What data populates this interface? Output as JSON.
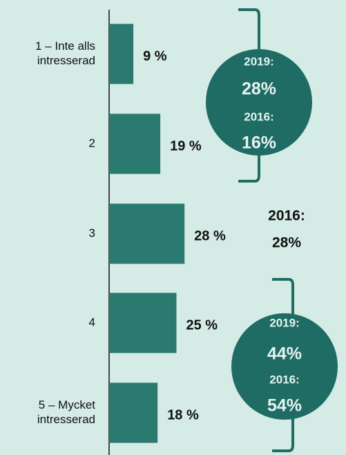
{
  "chart_data": {
    "type": "hbar",
    "categories": [
      "1 – Inte alls intresserad",
      "2",
      "3",
      "4",
      "5 – Mycket intresserad"
    ],
    "values": [
      9,
      19,
      28,
      25,
      18
    ],
    "value_labels": [
      "9 %",
      "19 %",
      "28 %",
      "25 %",
      "18 %"
    ],
    "xlim": [
      0,
      100
    ],
    "color": "#2b7a70",
    "annotations": [
      {
        "lines": [
          "2019:",
          "28%",
          "2016:",
          "16%"
        ],
        "circle_color": "#1f6c64"
      },
      {
        "lines": [
          "2016:",
          "28%"
        ]
      },
      {
        "lines": [
          "2019:",
          "44%",
          "2016:",
          "54%"
        ],
        "circle_color": "#1f6c64"
      }
    ]
  }
}
